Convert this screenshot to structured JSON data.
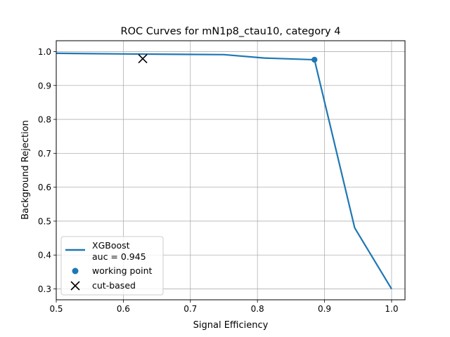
{
  "chart_data": {
    "type": "line",
    "title": "ROC Curves for mN1p8_ctau10, category 4",
    "xlabel": "Signal Efficiency",
    "ylabel": "Background Rejection",
    "xlim": [
      0.5,
      1.02
    ],
    "ylim": [
      0.268,
      1.032
    ],
    "xticks": [
      0.5,
      0.6,
      0.7,
      0.8,
      0.9,
      1.0
    ],
    "xtick_labels": [
      "0.5",
      "0.6",
      "0.7",
      "0.8",
      "0.9",
      "1.0"
    ],
    "yticks": [
      0.3,
      0.4,
      0.5,
      0.6,
      0.7,
      0.8,
      0.9,
      1.0
    ],
    "ytick_labels": [
      "0.3",
      "0.4",
      "0.5",
      "0.6",
      "0.7",
      "0.8",
      "0.9",
      "1.0"
    ],
    "grid": true,
    "legend_position": "lower-left",
    "series": [
      {
        "name": "XGBoost",
        "label_line2": "auc = 0.945",
        "color": "#1f77b4",
        "x": [
          0.5,
          0.6,
          0.75,
          0.81,
          0.885,
          0.945,
          1.0
        ],
        "y": [
          0.995,
          0.993,
          0.991,
          0.981,
          0.976,
          0.48,
          0.3
        ]
      }
    ],
    "working_point": {
      "label": "working point",
      "x": 0.885,
      "y": 0.976,
      "color": "#1f77b4"
    },
    "cut_based": {
      "label": "cut-based",
      "x": 0.629,
      "y": 0.979,
      "color": "#000000"
    }
  }
}
